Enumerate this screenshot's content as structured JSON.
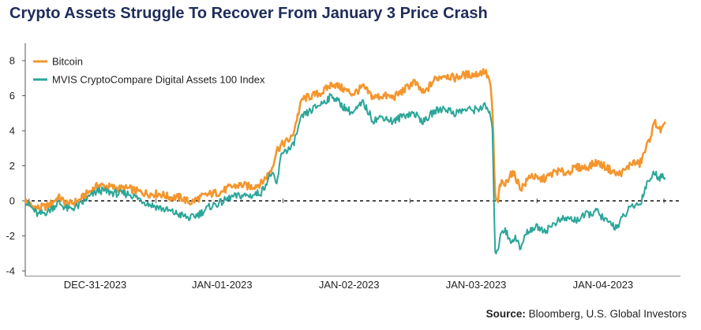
{
  "title": "Crypto Assets Struggle To Recover From January 3 Price Crash",
  "source": {
    "label": "Source:",
    "text": "Bloomberg, U.S. Global Investors"
  },
  "chart_data": {
    "type": "line",
    "xlabel": "",
    "ylabel": "",
    "ylim": [
      -4,
      9
    ],
    "yticks": [
      8,
      6,
      4,
      2,
      0,
      -2,
      -4
    ],
    "x_categories": [
      "DEC-31-2023",
      "JAN-01-2023",
      "JAN-02-2023",
      "JAN-03-2023",
      "JAN-04-2023"
    ],
    "xlim": [
      0,
      5.16
    ],
    "grid": false,
    "zero_line": "dashed",
    "legend": "top-left",
    "series": [
      {
        "name": "Bitcoin",
        "color": "#f4962e",
        "x": [
          0.0,
          0.05,
          0.1,
          0.18,
          0.26,
          0.34,
          0.42,
          0.5,
          0.58,
          0.66,
          0.74,
          0.82,
          0.9,
          0.98,
          1.06,
          1.14,
          1.22,
          1.3,
          1.38,
          1.46,
          1.54,
          1.62,
          1.7,
          1.78,
          1.86,
          1.94,
          1.98,
          2.02,
          2.1,
          2.18,
          2.26,
          2.34,
          2.42,
          2.5,
          2.58,
          2.66,
          2.74,
          2.82,
          2.9,
          2.98,
          3.06,
          3.14,
          3.22,
          3.3,
          3.38,
          3.46,
          3.54,
          3.62,
          3.66,
          3.68,
          3.7,
          3.72,
          3.74,
          3.78,
          3.82,
          3.86,
          3.9,
          3.94,
          3.98,
          4.04,
          4.1,
          4.18,
          4.26,
          4.34,
          4.42,
          4.5,
          4.58,
          4.66,
          4.72,
          4.78,
          4.84,
          4.9,
          4.96,
          5.0,
          5.04
        ],
        "y": [
          0.0,
          -0.3,
          -0.4,
          -0.3,
          0.2,
          -0.2,
          0.0,
          0.5,
          0.9,
          0.8,
          0.7,
          0.7,
          0.5,
          0.4,
          0.4,
          0.2,
          0.2,
          -0.1,
          0.2,
          0.4,
          0.5,
          0.8,
          0.9,
          0.8,
          1.0,
          1.8,
          2.9,
          3.2,
          3.6,
          5.8,
          6.0,
          6.2,
          6.7,
          6.4,
          6.1,
          6.5,
          5.9,
          6.0,
          5.9,
          6.3,
          6.8,
          6.1,
          6.9,
          7.2,
          7.0,
          7.2,
          7.2,
          7.4,
          6.8,
          5.0,
          0.3,
          -0.2,
          1.0,
          0.9,
          1.6,
          1.4,
          0.7,
          1.0,
          1.5,
          1.2,
          1.3,
          1.7,
          1.6,
          1.9,
          1.9,
          2.2,
          1.9,
          1.5,
          1.7,
          2.2,
          2.1,
          3.2,
          4.5,
          4.0,
          4.3
        ]
      },
      {
        "name": "MVIS CryptoCompare Digital Assets 100 Index",
        "color": "#2ba699",
        "x": [
          0.0,
          0.05,
          0.1,
          0.18,
          0.26,
          0.34,
          0.42,
          0.5,
          0.58,
          0.66,
          0.74,
          0.82,
          0.9,
          0.98,
          1.06,
          1.14,
          1.22,
          1.3,
          1.38,
          1.46,
          1.54,
          1.62,
          1.7,
          1.78,
          1.86,
          1.94,
          1.98,
          2.02,
          2.1,
          2.18,
          2.26,
          2.34,
          2.42,
          2.5,
          2.58,
          2.66,
          2.74,
          2.82,
          2.9,
          2.98,
          3.06,
          3.14,
          3.22,
          3.3,
          3.38,
          3.46,
          3.54,
          3.62,
          3.66,
          3.68,
          3.7,
          3.72,
          3.74,
          3.78,
          3.82,
          3.86,
          3.9,
          3.94,
          3.98,
          4.04,
          4.1,
          4.18,
          4.26,
          4.34,
          4.42,
          4.5,
          4.58,
          4.66,
          4.72,
          4.78,
          4.84,
          4.9,
          4.96,
          5.0,
          5.04
        ],
        "y": [
          0.0,
          -0.4,
          -0.8,
          -0.6,
          -0.1,
          -0.5,
          -0.3,
          0.2,
          0.6,
          0.5,
          0.4,
          0.4,
          0.1,
          -0.2,
          -0.4,
          -0.6,
          -0.8,
          -1.0,
          -0.7,
          -0.3,
          -0.1,
          0.2,
          0.3,
          0.3,
          0.5,
          1.6,
          0.9,
          2.8,
          3.0,
          4.8,
          5.2,
          5.6,
          6.0,
          5.4,
          5.0,
          5.6,
          4.6,
          4.8,
          4.5,
          4.9,
          5.0,
          4.5,
          5.1,
          5.3,
          5.0,
          5.2,
          5.2,
          5.4,
          5.0,
          3.8,
          -2.8,
          -3.1,
          -1.8,
          -1.6,
          -2.4,
          -2.0,
          -2.8,
          -1.9,
          -1.6,
          -1.5,
          -1.7,
          -1.2,
          -1.0,
          -1.1,
          -0.8,
          -0.6,
          -1.2,
          -1.5,
          -0.8,
          -0.3,
          -0.2,
          1.1,
          1.6,
          1.3,
          1.5
        ]
      }
    ]
  }
}
